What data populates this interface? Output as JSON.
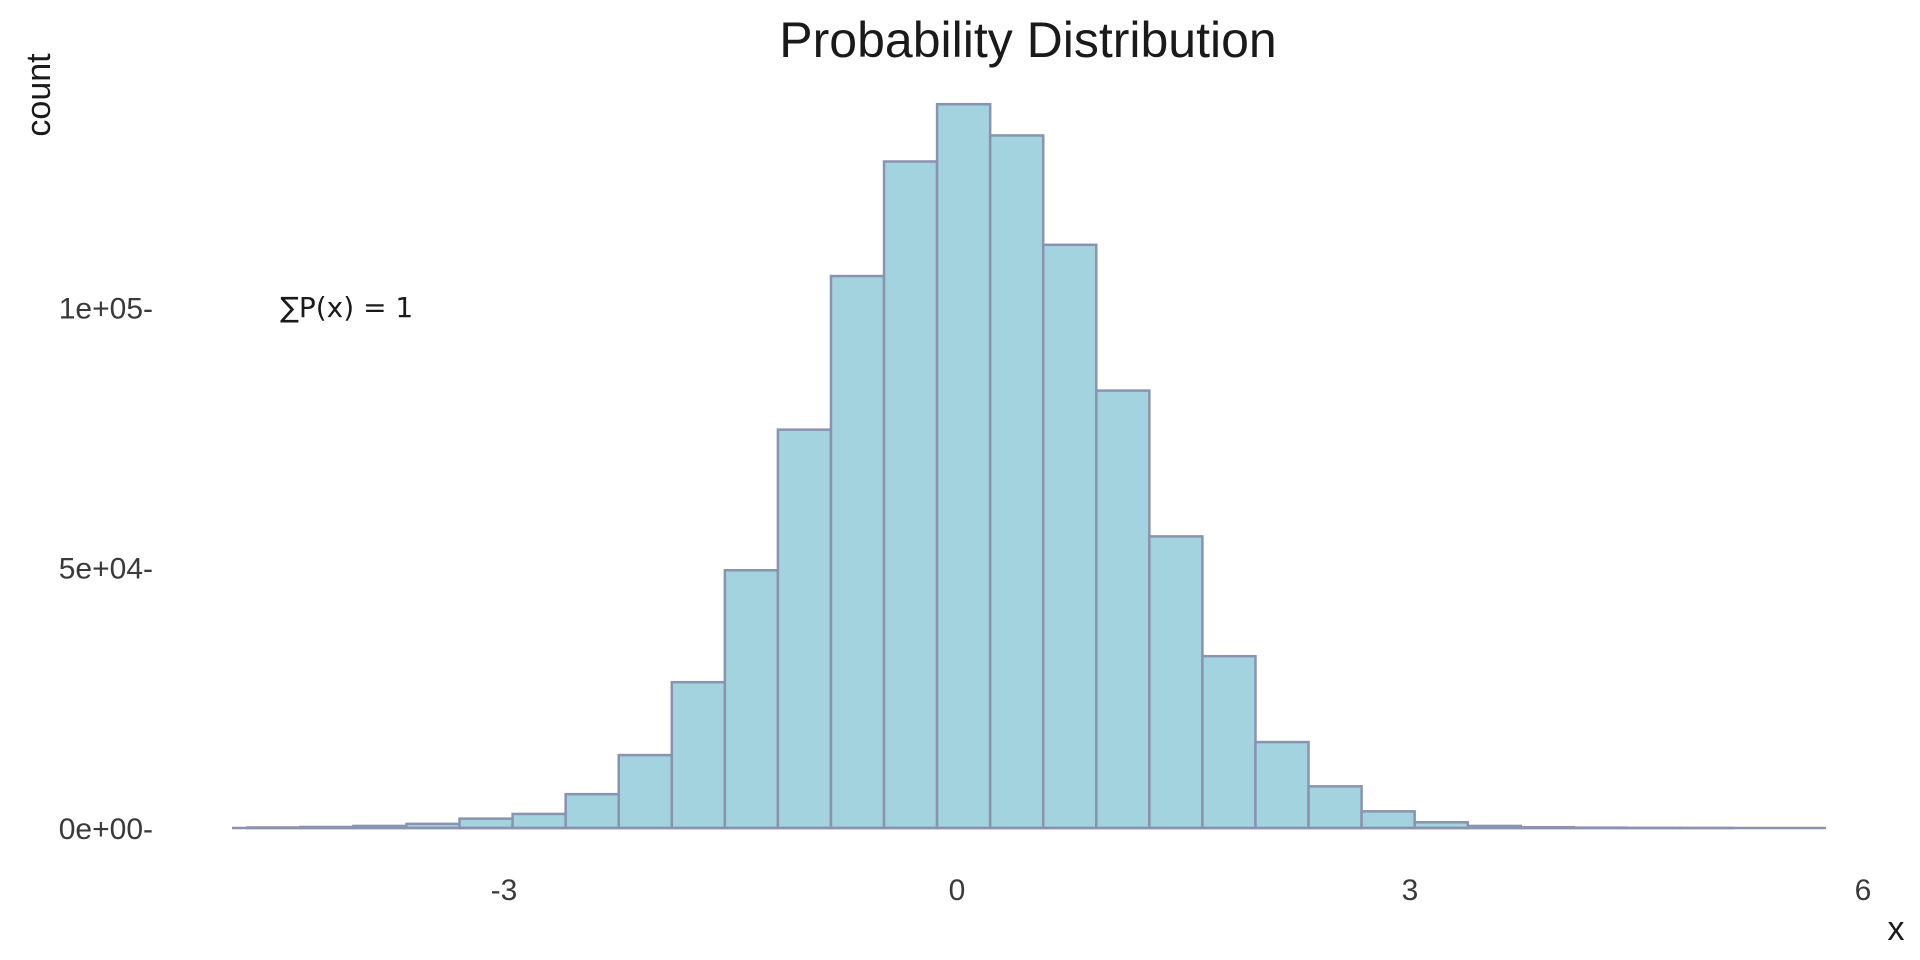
{
  "chart_data": {
    "type": "bar",
    "title": "Probability Distribution",
    "xlabel": "x",
    "ylabel": "count",
    "annotation": "∑P(x) = 1",
    "xlim": [
      -4.8,
      6
    ],
    "ylim": [
      0,
      140000
    ],
    "x_ticks": [
      -3,
      0,
      3,
      6
    ],
    "x_tick_labels": [
      "-3",
      "0",
      "3",
      "6"
    ],
    "y_ticks": [
      0,
      50000,
      100000
    ],
    "y_tick_labels": [
      "0e+00-",
      "5e+04-",
      "1e+05-"
    ],
    "bin_width": 0.3514,
    "bin_start": -4.7,
    "values": [
      100,
      200,
      400,
      800,
      1800,
      2700,
      6500,
      14000,
      28000,
      49500,
      76500,
      106000,
      128000,
      139000,
      133000,
      112000,
      84000,
      56000,
      33000,
      16500,
      8000,
      3200,
      1100,
      400,
      150,
      60,
      20,
      10,
      0,
      0,
      0,
      0,
      0,
      0,
      0
    ],
    "colors": {
      "fill": "#a3d3de",
      "stroke": "#8a93b0"
    },
    "grid": false
  }
}
